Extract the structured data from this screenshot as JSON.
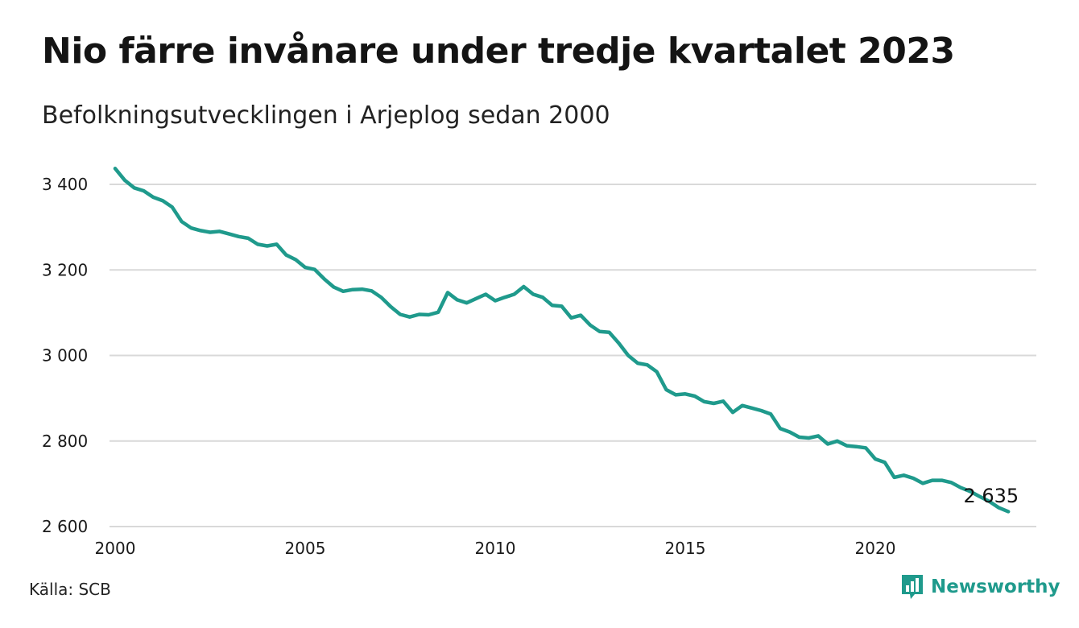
{
  "header": {
    "title": "Nio färre invånare under tredje kvartalet 2023",
    "subtitle": "Befolkningsutvecklingen i Arjeplog sedan 2000"
  },
  "footer": {
    "source": "Källa: SCB",
    "brand": "Newsworthy"
  },
  "colors": {
    "line": "#1f9a8c",
    "grid": "#d9d9d9",
    "brand": "#1f9a8c"
  },
  "icons": {
    "brand_logo": "bar-chart-speech-bubble-icon"
  },
  "chart_data": {
    "type": "line",
    "xlim": [
      2000,
      2024.5
    ],
    "ylim": [
      2600,
      3440
    ],
    "x_ticks": [
      2000,
      2005,
      2010,
      2015,
      2020
    ],
    "x_tick_labels": [
      "2000",
      "2005",
      "2010",
      "2015",
      "2020"
    ],
    "y_ticks": [
      2600,
      2800,
      3000,
      3200,
      3400
    ],
    "y_tick_labels": [
      "2 600",
      "2 800",
      "3 000",
      "3 200",
      "3 400"
    ],
    "grid": "horizontal",
    "last_value_label": "2 635",
    "series": [
      {
        "values": [
          3437,
          3410,
          3392,
          3385,
          3370,
          3362,
          3347,
          3313,
          3298,
          3292,
          3288,
          3290,
          3284,
          3278,
          3274,
          3260,
          3256,
          3260,
          3235,
          3224,
          3206,
          3201,
          3179,
          3160,
          3150,
          3154,
          3155,
          3151,
          3136,
          3114,
          3096,
          3090,
          3096,
          3095,
          3101,
          3147,
          3130,
          3123,
          3133,
          3143,
          3128,
          3136,
          3143,
          3161,
          3143,
          3136,
          3117,
          3115,
          3088,
          3094,
          3071,
          3056,
          3054,
          3029,
          3000,
          2982,
          2978,
          2962,
          2920,
          2908,
          2910,
          2905,
          2892,
          2888,
          2893,
          2867,
          2883,
          2877,
          2871,
          2863,
          2829,
          2821,
          2809,
          2807,
          2812,
          2793,
          2800,
          2789,
          2787,
          2784,
          2758,
          2750,
          2715,
          2720,
          2713,
          2701,
          2708,
          2708,
          2703,
          2691,
          2682,
          2670,
          2659,
          2644,
          2635
        ]
      }
    ]
  }
}
